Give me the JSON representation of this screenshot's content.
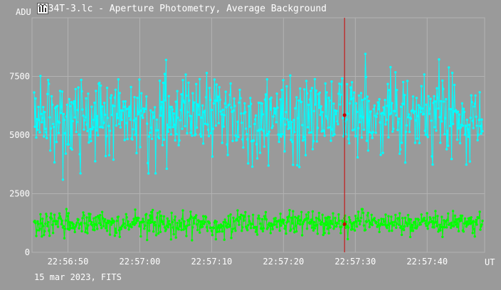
{
  "window": {
    "title": "5034T-3.lc - Aperture Photometry, Average Background",
    "icon": "chart-app-icon"
  },
  "footer": {
    "text": "15 mar 2023, FITS"
  },
  "colors": {
    "background": "#9a9a9a",
    "grid": "#b3b3b3",
    "text": "#ffffff",
    "cursor": "#cc0000",
    "series_target": "#00ffff",
    "series_background": "#00ff00"
  },
  "chart_data": {
    "type": "line",
    "title": "",
    "xlabel": "UT",
    "ylabel": "ADU",
    "grid": true,
    "xlim": [
      "22:56:45",
      "22:57:48"
    ],
    "ylim": [
      0,
      10000
    ],
    "x_ticks": [
      "22:56:50",
      "22:57:00",
      "22:57:10",
      "22:57:20",
      "22:57:30",
      "22:57:40"
    ],
    "y_ticks": [
      "0",
      "2500",
      "5000",
      "7500"
    ],
    "cursor": {
      "x": "22:57:28.5",
      "values": [
        5850,
        1200
      ]
    },
    "series": [
      {
        "color": "#00ffff",
        "point_count": 640,
        "mean": 5800,
        "approx_range": [
          2900,
          8650
        ],
        "stats_label": "approx. mean 5800, range 2900–8650"
      },
      {
        "color": "#00ff00",
        "point_count": 640,
        "mean": 1250,
        "approx_range": [
          350,
          1950
        ],
        "stats_label": "approx. mean 1250, range 350–1950"
      }
    ]
  }
}
